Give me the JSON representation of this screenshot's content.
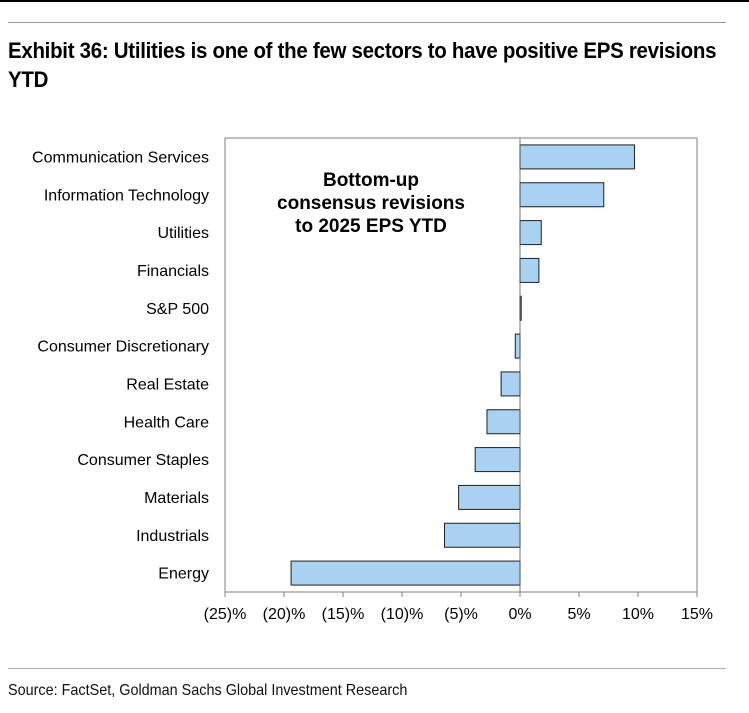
{
  "title": "Exhibit 36: Utilities is one of the few sectors to have positive EPS revisions YTD",
  "source": "Source: FactSet, Goldman Sachs Global Investment Research",
  "colors": {
    "bar_fill": "#a9d1f1",
    "bar_stroke": "#1f1f1f",
    "frame": "#7f7f7f"
  },
  "chart_data": {
    "type": "bar",
    "orientation": "horizontal",
    "categories": [
      "Communication Services",
      "Information Technology",
      "Utilities",
      "Financials",
      "S&P 500",
      "Consumer Discretionary",
      "Real Estate",
      "Health Care",
      "Consumer Staples",
      "Materials",
      "Industrials",
      "Energy"
    ],
    "values": [
      9.7,
      7.1,
      1.8,
      1.6,
      0.1,
      -0.4,
      -1.6,
      -2.8,
      -3.8,
      -5.2,
      -6.4,
      -19.4
    ],
    "xlim": [
      -25,
      15
    ],
    "ticks": [
      -25,
      -20,
      -15,
      -10,
      -5,
      0,
      5,
      10,
      15
    ],
    "tick_labels": [
      "(25)%",
      "(20)%",
      "(15)%",
      "(10)%",
      "(5)%",
      "0%",
      "5%",
      "10%",
      "15%"
    ],
    "annotation": [
      "Bottom-up",
      "consensus revisions",
      "to 2025 EPS YTD"
    ],
    "grid": false,
    "xlabel": "",
    "ylabel": ""
  }
}
